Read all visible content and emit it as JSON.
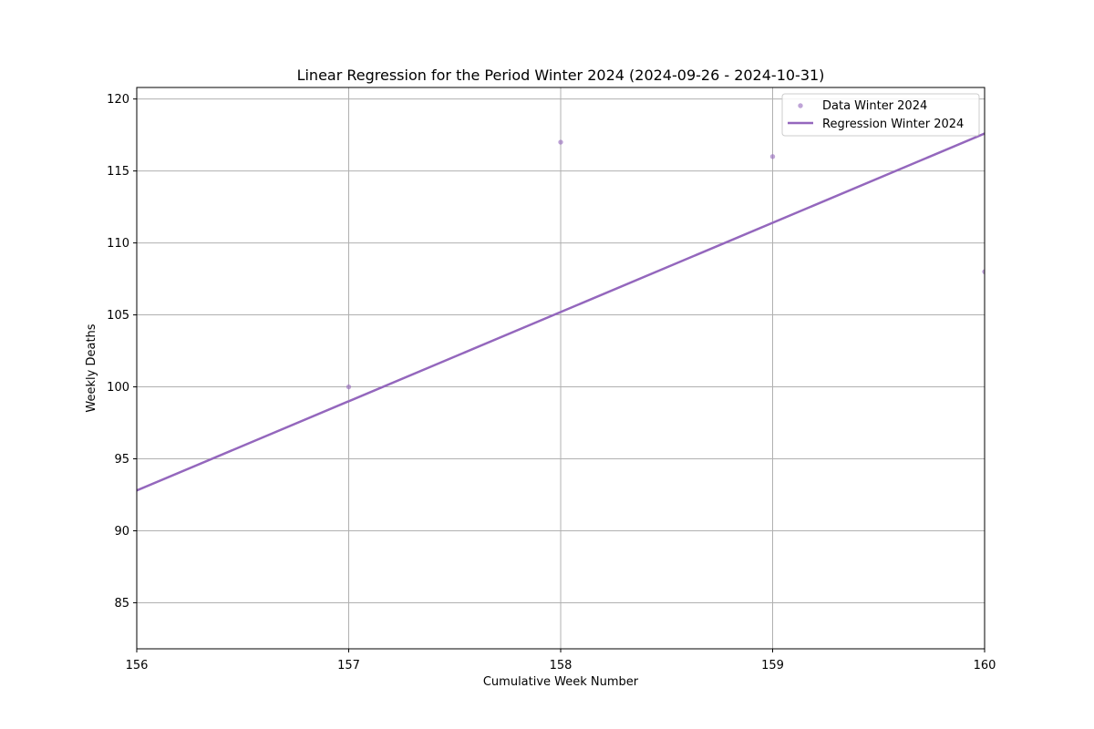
{
  "chart_data": {
    "type": "scatter",
    "title": "Linear Regression for the Period Winter 2024 (2024-09-26 - 2024-10-31)",
    "xlabel": "Cumulative Week Number",
    "ylabel": "Weekly Deaths",
    "xlim": [
      156,
      160
    ],
    "ylim": [
      81.8,
      120.8
    ],
    "xticks": [
      156,
      157,
      158,
      159,
      160
    ],
    "yticks": [
      85,
      90,
      95,
      100,
      105,
      110,
      115,
      120
    ],
    "grid": true,
    "legend_position": "top-right",
    "color": "#9467bd",
    "points": {
      "name": "Data Winter 2024",
      "x": [
        157,
        158,
        159,
        160
      ],
      "y": [
        100,
        117,
        116,
        108
      ]
    },
    "regression": {
      "name": "Regression Winter 2024",
      "x": [
        156,
        160
      ],
      "y": [
        92.8,
        117.6
      ]
    }
  }
}
